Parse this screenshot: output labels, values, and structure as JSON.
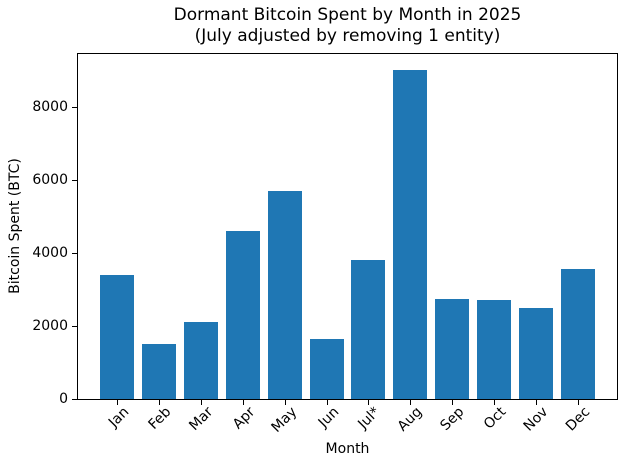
{
  "chart_data": {
    "type": "bar",
    "title": "Dormant Bitcoin Spent by Month in 2025",
    "subtitle": "(July adjusted by removing 1 entity)",
    "xlabel": "Month",
    "ylabel": "Bitcoin Spent (BTC)",
    "categories": [
      "Jan",
      "Feb",
      "Mar",
      "Apr",
      "May",
      "Jun",
      "Jul*",
      "Aug",
      "Sep",
      "Oct",
      "Nov",
      "Dec"
    ],
    "values": [
      3400,
      1500,
      2100,
      4600,
      5700,
      1650,
      3800,
      9000,
      2750,
      2700,
      2500,
      3550
    ],
    "yticks": [
      0,
      2000,
      4000,
      6000,
      8000
    ],
    "ylim": [
      0,
      9450
    ],
    "bar_color": "#1f77b4",
    "axis_color": "#000000",
    "background_color": "#ffffff",
    "grid": false,
    "legend_position": "none"
  }
}
